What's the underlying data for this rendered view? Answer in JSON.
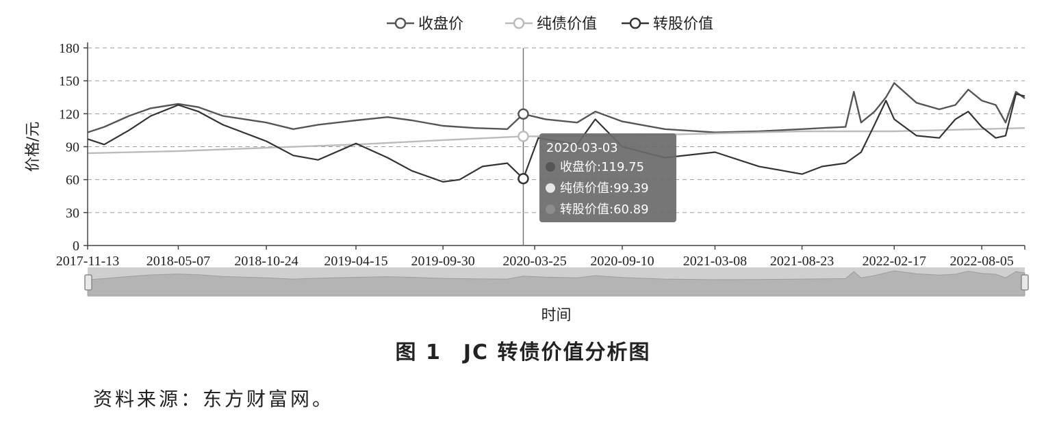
{
  "chart_data": {
    "type": "line",
    "xlabel": "时间",
    "ylabel": "价格/元",
    "ylim": [
      0,
      180
    ],
    "yticks": [
      0,
      30,
      60,
      90,
      120,
      150,
      180
    ],
    "grid": true,
    "legend_position": "top-center",
    "x_tick_labels": [
      "2017-11-13",
      "2018-05-07",
      "2018-10-24",
      "2019-04-15",
      "2019-09-30",
      "2020-03-25",
      "2020-09-10",
      "2021-03-08",
      "2021-08-23",
      "2022-02-17",
      "2022-08-05"
    ],
    "x_range": [
      "2017-11-13",
      "2022-10-27"
    ],
    "colors": {
      "收盘价": "#555555",
      "纯债价值": "#bbbbbb",
      "转股价值": "#333333"
    },
    "series": [
      {
        "name": "收盘价",
        "x": [
          "2017-11-13",
          "2017-12-15",
          "2018-02-01",
          "2018-03-15",
          "2018-05-07",
          "2018-06-15",
          "2018-08-01",
          "2018-10-24",
          "2018-12-15",
          "2019-02-01",
          "2019-04-15",
          "2019-06-15",
          "2019-08-01",
          "2019-09-30",
          "2019-12-01",
          "2020-02-01",
          "2020-03-03",
          "2020-04-15",
          "2020-06-15",
          "2020-07-20",
          "2020-09-10",
          "2020-12-01",
          "2021-03-08",
          "2021-06-01",
          "2021-08-23",
          "2021-10-01",
          "2021-11-15",
          "2021-12-01",
          "2021-12-15",
          "2022-01-10",
          "2022-02-01",
          "2022-02-17",
          "2022-04-01",
          "2022-05-15",
          "2022-06-15",
          "2022-07-10",
          "2022-08-05",
          "2022-09-01",
          "2022-09-20",
          "2022-10-10",
          "2022-10-27"
        ],
        "values": [
          103,
          108,
          118,
          125,
          129,
          126,
          118,
          112,
          106,
          110,
          114,
          117,
          114,
          109,
          107,
          106,
          119.75,
          115,
          112,
          122,
          113,
          106,
          103,
          104,
          106,
          107,
          108,
          140,
          112,
          122,
          135,
          148,
          130,
          124,
          128,
          142,
          132,
          128,
          112,
          140,
          134
        ]
      },
      {
        "name": "纯债价值",
        "x": [
          "2017-11-13",
          "2018-05-07",
          "2018-10-24",
          "2019-04-15",
          "2019-09-30",
          "2020-03-03",
          "2020-09-10",
          "2021-03-08",
          "2021-08-23",
          "2022-02-17",
          "2022-08-05",
          "2022-10-27"
        ],
        "values": [
          84,
          86,
          89,
          92,
          96,
          99.39,
          100,
          102,
          104,
          104,
          106,
          107
        ]
      },
      {
        "name": "转股价值",
        "x": [
          "2017-11-13",
          "2017-12-15",
          "2018-02-01",
          "2018-03-15",
          "2018-05-07",
          "2018-06-15",
          "2018-08-01",
          "2018-10-24",
          "2018-12-15",
          "2019-02-01",
          "2019-04-15",
          "2019-06-15",
          "2019-08-01",
          "2019-09-30",
          "2019-11-01",
          "2019-12-15",
          "2020-02-01",
          "2020-03-03",
          "2020-04-01",
          "2020-06-15",
          "2020-07-20",
          "2020-09-10",
          "2020-12-01",
          "2021-03-08",
          "2021-06-01",
          "2021-08-23",
          "2021-10-01",
          "2021-11-15",
          "2021-12-15",
          "2022-01-10",
          "2022-02-01",
          "2022-02-17",
          "2022-04-01",
          "2022-05-15",
          "2022-06-15",
          "2022-07-10",
          "2022-08-05",
          "2022-09-01",
          "2022-09-20",
          "2022-10-10",
          "2022-10-27"
        ],
        "values": [
          97,
          92,
          105,
          118,
          128,
          122,
          110,
          95,
          82,
          78,
          93,
          80,
          68,
          58,
          60,
          72,
          75,
          60.89,
          98,
          92,
          115,
          90,
          80,
          85,
          72,
          65,
          72,
          75,
          85,
          110,
          132,
          115,
          100,
          98,
          115,
          122,
          108,
          98,
          100,
          138,
          136
        ]
      }
    ],
    "tooltip": {
      "date": "2020-03-03",
      "rows": [
        {
          "label": "收盘价:119.75"
        },
        {
          "label": "纯债价值:99.39"
        },
        {
          "label": "转股价值:60.89"
        }
      ]
    }
  },
  "caption": "图 1　JC 转债价值分析图",
  "source": "资料来源：东方财富网。"
}
